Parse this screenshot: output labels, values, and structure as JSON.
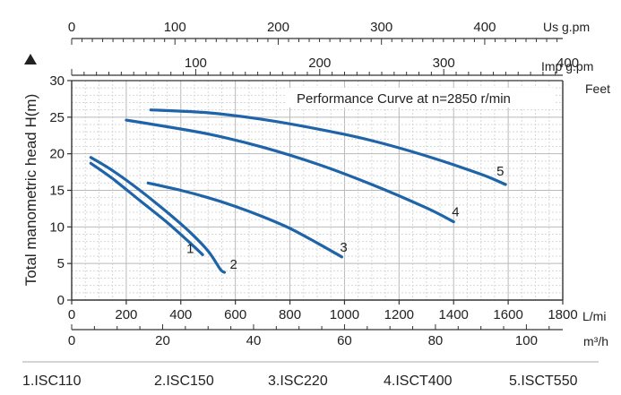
{
  "chart_data": {
    "type": "line",
    "title": "Performance Curve at n=2850 r/min",
    "xlabel": "L/mi",
    "ylabel": "Total manometric head H(m)",
    "xlim": [
      0,
      1800
    ],
    "ylim": [
      0,
      30
    ],
    "x_ticks": [
      "0",
      "200",
      "400",
      "600",
      "800",
      "1000",
      "1200",
      "1400",
      "1600",
      "1800"
    ],
    "y_ticks": [
      "0",
      "5",
      "10",
      "15",
      "20",
      "25",
      "30"
    ],
    "grid": true,
    "secondary_axes": {
      "us_gpm": {
        "unit": "Us g.pm",
        "ticks": [
          {
            "v": 0,
            "label": "0"
          },
          {
            "v": 100,
            "label": "100"
          },
          {
            "v": 200,
            "label": "200"
          },
          {
            "v": 300,
            "label": "300"
          },
          {
            "v": 400,
            "label": "400"
          }
        ]
      },
      "imp_gpm": {
        "unit": "Imp g.pm",
        "ticks": [
          {
            "v": 100,
            "label": "100"
          },
          {
            "v": 200,
            "label": "200"
          },
          {
            "v": 300,
            "label": "300"
          },
          {
            "v": 400,
            "label": "400"
          }
        ]
      },
      "feet": {
        "unit": "Feet"
      },
      "m3h": {
        "unit": "m³/h",
        "ticks": [
          {
            "v": 0,
            "label": "0"
          },
          {
            "v": 20,
            "label": "20"
          },
          {
            "v": 40,
            "label": "40"
          },
          {
            "v": 60,
            "label": "60"
          },
          {
            "v": 80,
            "label": "80"
          },
          {
            "v": 100,
            "label": "100"
          }
        ]
      }
    },
    "series": [
      {
        "name": "1",
        "points": [
          [
            70,
            18.7
          ],
          [
            150,
            16.6
          ],
          [
            250,
            13.6
          ],
          [
            350,
            10.6
          ],
          [
            440,
            7.6
          ],
          [
            480,
            6.2
          ]
        ]
      },
      {
        "name": "2",
        "points": [
          [
            70,
            19.5
          ],
          [
            150,
            17.7
          ],
          [
            250,
            15.0
          ],
          [
            350,
            12.0
          ],
          [
            430,
            9.4
          ],
          [
            500,
            6.7
          ],
          [
            545,
            4.2
          ],
          [
            560,
            3.8
          ]
        ]
      },
      {
        "name": "3",
        "points": [
          [
            280,
            16.0
          ],
          [
            400,
            15.0
          ],
          [
            500,
            14.0
          ],
          [
            600,
            12.8
          ],
          [
            700,
            11.4
          ],
          [
            800,
            9.8
          ],
          [
            900,
            7.8
          ],
          [
            990,
            5.9
          ]
        ]
      },
      {
        "name": "4",
        "points": [
          [
            200,
            24.6
          ],
          [
            300,
            24.0
          ],
          [
            500,
            22.7
          ],
          [
            700,
            20.9
          ],
          [
            900,
            18.6
          ],
          [
            1100,
            15.8
          ],
          [
            1300,
            12.6
          ],
          [
            1400,
            10.7
          ]
        ]
      },
      {
        "name": "5",
        "points": [
          [
            290,
            26.0
          ],
          [
            500,
            25.6
          ],
          [
            700,
            24.7
          ],
          [
            900,
            23.4
          ],
          [
            1100,
            21.8
          ],
          [
            1300,
            19.7
          ],
          [
            1500,
            17.2
          ],
          [
            1590,
            15.8
          ]
        ]
      }
    ],
    "legend": [
      "1.ISC110",
      "2.ISC150",
      "3.ISC220",
      "4.ISCT400",
      "5.ISCT550"
    ]
  }
}
